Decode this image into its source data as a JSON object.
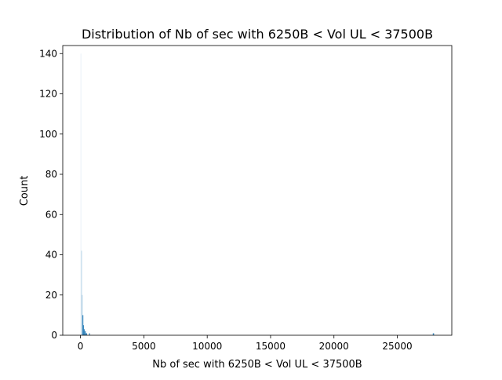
{
  "chart_data": {
    "type": "histogram",
    "title": "Distribution of Nb of sec with 6250B < Vol UL < 37500B",
    "xlabel": "Nb of sec with 6250B < Vol UL < 37500B",
    "ylabel": "Count",
    "xlim": [
      -1400,
      29300
    ],
    "ylim": [
      0,
      144
    ],
    "xticks": [
      0,
      5000,
      10000,
      15000,
      20000,
      25000
    ],
    "yticks": [
      0,
      20,
      40,
      60,
      80,
      100,
      120,
      140
    ],
    "grid": false,
    "bar_color": "#1f77b4",
    "bins": [
      {
        "x0": 0,
        "x1": 50,
        "count": 140
      },
      {
        "x0": 50,
        "x1": 100,
        "count": 42
      },
      {
        "x0": 100,
        "x1": 150,
        "count": 20
      },
      {
        "x0": 150,
        "x1": 200,
        "count": 10
      },
      {
        "x0": 200,
        "x1": 260,
        "count": 5
      },
      {
        "x0": 260,
        "x1": 330,
        "count": 3
      },
      {
        "x0": 330,
        "x1": 420,
        "count": 2
      },
      {
        "x0": 420,
        "x1": 520,
        "count": 1
      },
      {
        "x0": 680,
        "x1": 740,
        "count": 1
      },
      {
        "x0": 27800,
        "x1": 27900,
        "count": 1
      }
    ]
  }
}
